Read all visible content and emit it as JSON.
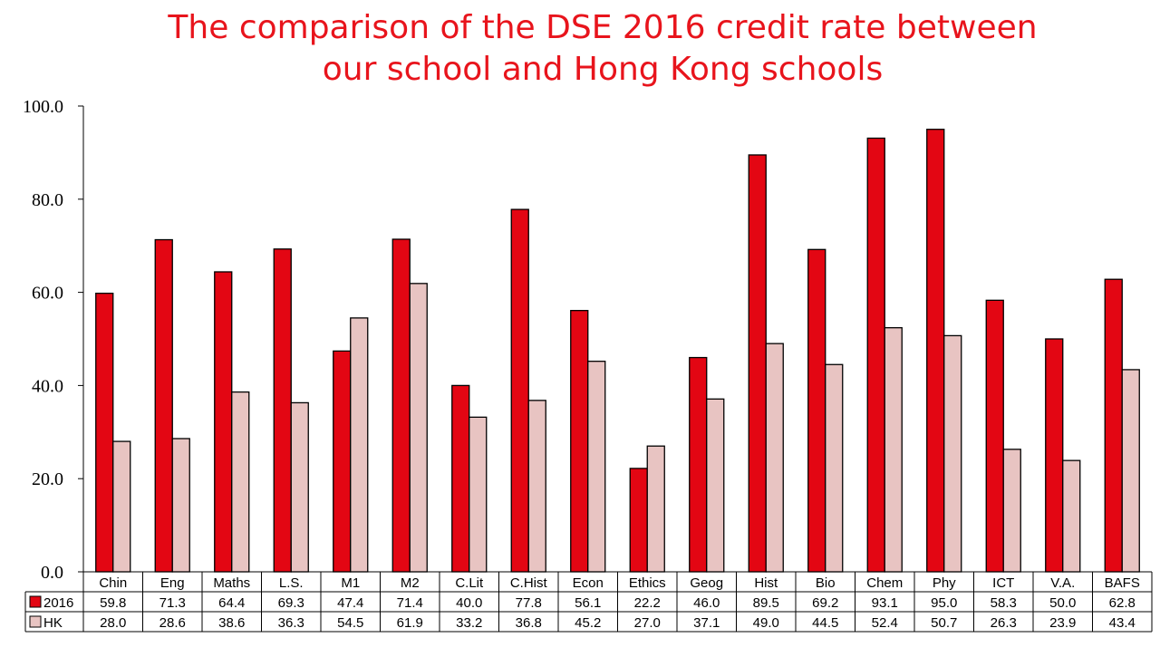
{
  "chart_data": {
    "type": "bar",
    "title_lines": [
      "The comparison of the DSE 2016 credit rate between",
      "our school and Hong Kong schools"
    ],
    "categories": [
      "Chin",
      "Eng",
      "Maths",
      "L.S.",
      "M1",
      "M2",
      "C.Lit",
      "C.Hist",
      "Econ",
      "Ethics",
      "Geog",
      "Hist",
      "Bio",
      "Chem",
      "Phy",
      "ICT",
      "V.A.",
      "BAFS"
    ],
    "series": [
      {
        "name": "2016",
        "color": "#e30613",
        "values": [
          59.8,
          71.3,
          64.4,
          69.3,
          47.4,
          71.4,
          40.0,
          77.8,
          56.1,
          22.2,
          46.0,
          89.5,
          69.2,
          93.1,
          95.0,
          58.3,
          50.0,
          62.8
        ]
      },
      {
        "name": "HK",
        "color": "#e8c4c2",
        "values": [
          28.0,
          28.6,
          38.6,
          36.3,
          54.5,
          61.9,
          33.2,
          36.8,
          45.2,
          27.0,
          37.1,
          49.0,
          44.5,
          52.4,
          50.7,
          26.3,
          23.9,
          43.4
        ]
      }
    ],
    "ylim": [
      0,
      100
    ],
    "yticks": [
      "0.0",
      "20.0",
      "40.0",
      "60.0",
      "80.0",
      "100.0"
    ],
    "grid": false,
    "legend": "data-table",
    "xlabel": "",
    "ylabel": ""
  }
}
